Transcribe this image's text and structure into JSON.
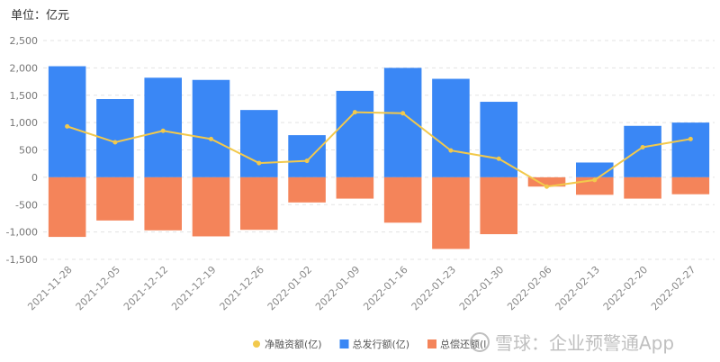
{
  "chart_data": {
    "type": "bar",
    "unit_label": "单位：亿元",
    "categories": [
      "2021-11-28",
      "2021-12-05",
      "2021-12-12",
      "2021-12-19",
      "2021-12-26",
      "2022-01-02",
      "2022-01-09",
      "2022-01-16",
      "2022-01-23",
      "2022-01-30",
      "2022-02-06",
      "2022-02-13",
      "2022-02-20",
      "2022-02-27"
    ],
    "series": [
      {
        "name": "总发行额(亿)",
        "type": "bar",
        "color": "#3a87f5",
        "values": [
          2030,
          1430,
          1820,
          1780,
          1230,
          770,
          1580,
          2000,
          1800,
          1380,
          0,
          270,
          940,
          1000
        ]
      },
      {
        "name": "总偿还额(亿)",
        "type": "bar",
        "color": "#f4845a",
        "values": [
          -1090,
          -790,
          -970,
          -1080,
          -960,
          -460,
          -390,
          -830,
          -1310,
          -1040,
          -170,
          -320,
          -390,
          -310
        ]
      },
      {
        "name": "净融资额(亿)",
        "type": "line",
        "color": "#f2c94c",
        "values": [
          930,
          640,
          850,
          700,
          260,
          300,
          1190,
          1170,
          490,
          340,
          -170,
          -50,
          550,
          700
        ]
      }
    ],
    "y_ticks": [
      "-1,500",
      "-1,000",
      "-500",
      "0",
      "500",
      "1,000",
      "1,500",
      "2,000",
      "2,500"
    ],
    "ylim": [
      -1500,
      2500
    ],
    "grid": true,
    "legend_placement": "bottom-right",
    "legend_order": [
      2,
      0,
      1
    ],
    "legend_visible_labels": [
      "净融资额(亿)",
      "总发行额(亿)",
      "总偿还额(l"
    ]
  },
  "watermark": "雪球：企业预警通App"
}
